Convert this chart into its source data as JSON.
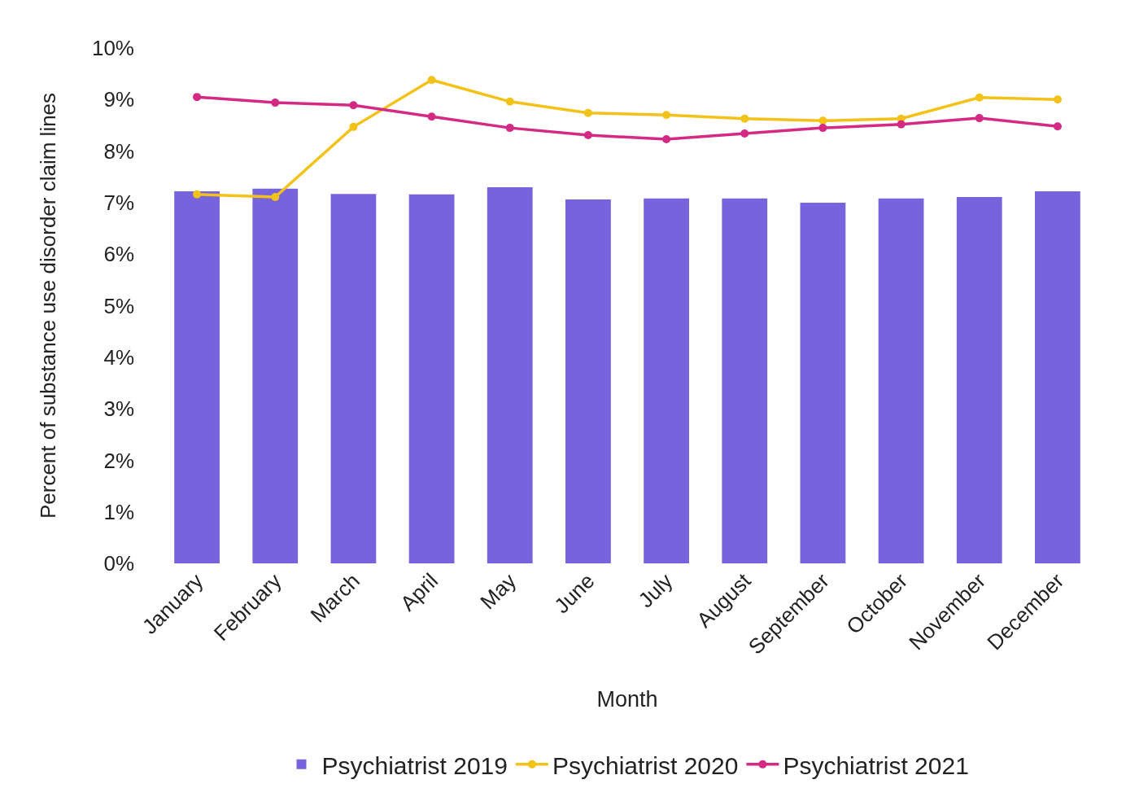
{
  "chart_data": {
    "type": "bar",
    "xlabel": "Month",
    "ylabel": "Percent of substance use disorder claim lines",
    "categories": [
      "January",
      "February",
      "March",
      "April",
      "May",
      "June",
      "July",
      "August",
      "September",
      "October",
      "November",
      "December"
    ],
    "series": [
      {
        "name": "Psychiatrist 2019",
        "color": "#7763dc",
        "values": [
          7.22,
          7.27,
          7.17,
          7.16,
          7.3,
          7.06,
          7.08,
          7.08,
          7.0,
          7.08,
          7.11,
          7.22
        ]
      },
      {
        "name": "Psychiatrist 2020",
        "type": "line",
        "color": "#f2c218",
        "values": [
          7.16,
          7.11,
          8.47,
          9.38,
          8.96,
          8.74,
          8.7,
          8.63,
          8.59,
          8.63,
          9.04,
          9.0
        ]
      },
      {
        "name": "Psychiatrist 2021",
        "type": "line",
        "color": "#d42a84",
        "values": [
          9.05,
          8.94,
          8.89,
          8.67,
          8.45,
          8.31,
          8.23,
          8.34,
          8.45,
          8.52,
          8.64,
          8.48
        ]
      }
    ],
    "ylim": [
      0,
      10
    ],
    "yticks": [
      {
        "value": 0,
        "label": "0%"
      },
      {
        "value": 1,
        "label": "1%"
      },
      {
        "value": 2,
        "label": "2%"
      },
      {
        "value": 3,
        "label": "3%"
      },
      {
        "value": 4,
        "label": "4%"
      },
      {
        "value": 5,
        "label": "5%"
      },
      {
        "value": 6,
        "label": "6%"
      },
      {
        "value": 7,
        "label": "7%"
      },
      {
        "value": 8,
        "label": "8%"
      },
      {
        "value": 9,
        "label": "9%"
      },
      {
        "value": 10,
        "label": "10%"
      }
    ],
    "marker": "circle",
    "line_style": "solid",
    "grid": false,
    "legend": "bottom"
  }
}
